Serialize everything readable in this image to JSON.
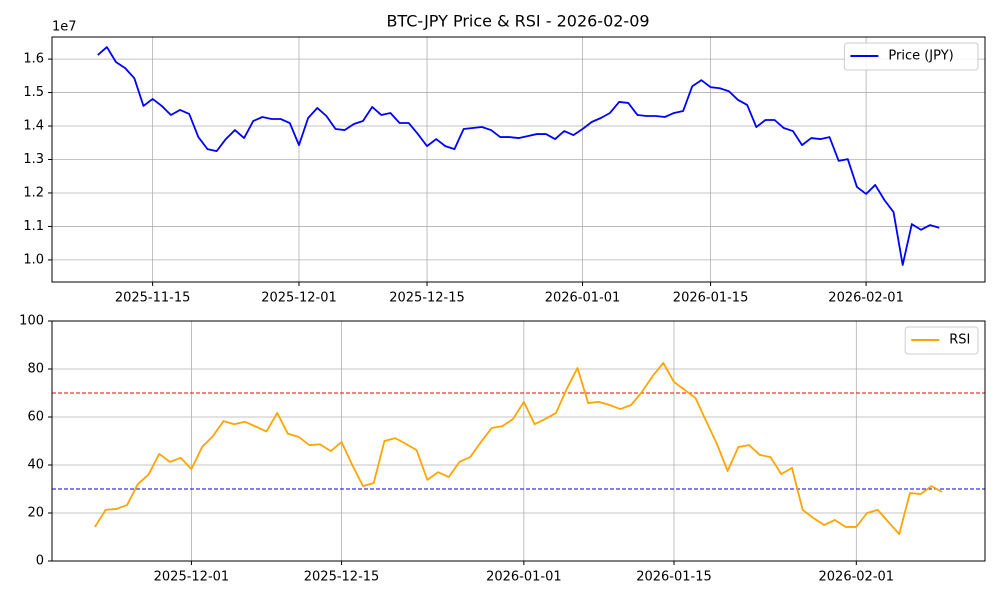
{
  "title": "BTC-JPY Price & RSI - 2026-02-09",
  "chart_data": [
    {
      "type": "line",
      "y_offset_label": "1e7",
      "x": [
        "2025-11-09",
        "2025-11-10",
        "2025-11-11",
        "2025-11-12",
        "2025-11-13",
        "2025-11-14",
        "2025-11-15",
        "2025-11-16",
        "2025-11-17",
        "2025-11-18",
        "2025-11-19",
        "2025-11-20",
        "2025-11-21",
        "2025-11-22",
        "2025-11-23",
        "2025-11-24",
        "2025-11-25",
        "2025-11-26",
        "2025-11-27",
        "2025-11-28",
        "2025-11-29",
        "2025-11-30",
        "2025-12-01",
        "2025-12-02",
        "2025-12-03",
        "2025-12-04",
        "2025-12-05",
        "2025-12-06",
        "2025-12-07",
        "2025-12-08",
        "2025-12-09",
        "2025-12-10",
        "2025-12-11",
        "2025-12-12",
        "2025-12-13",
        "2025-12-14",
        "2025-12-15",
        "2025-12-16",
        "2025-12-17",
        "2025-12-18",
        "2025-12-19",
        "2025-12-20",
        "2025-12-21",
        "2025-12-22",
        "2025-12-23",
        "2025-12-24",
        "2025-12-25",
        "2025-12-26",
        "2025-12-27",
        "2025-12-28",
        "2025-12-29",
        "2025-12-30",
        "2025-12-31",
        "2026-01-01",
        "2026-01-02",
        "2026-01-03",
        "2026-01-04",
        "2026-01-05",
        "2026-01-06",
        "2026-01-07",
        "2026-01-08",
        "2026-01-09",
        "2026-01-10",
        "2026-01-11",
        "2026-01-12",
        "2026-01-13",
        "2026-01-14",
        "2026-01-15",
        "2026-01-16",
        "2026-01-17",
        "2026-01-18",
        "2026-01-19",
        "2026-01-20",
        "2026-01-21",
        "2026-01-22",
        "2026-01-23",
        "2026-01-24",
        "2026-01-25",
        "2026-01-26",
        "2026-01-27",
        "2026-01-28",
        "2026-01-29",
        "2026-01-30",
        "2026-01-31",
        "2026-02-01",
        "2026-02-02",
        "2026-02-03",
        "2026-02-04",
        "2026-02-05",
        "2026-02-06",
        "2026-02-07",
        "2026-02-08",
        "2026-02-09"
      ],
      "series": [
        {
          "name": "Price (JPY)",
          "color": "#0000ff",
          "values": [
            16120000,
            16360000,
            15910000,
            15730000,
            15430000,
            14600000,
            14810000,
            14600000,
            14330000,
            14480000,
            14360000,
            13670000,
            13310000,
            13250000,
            13610000,
            13880000,
            13640000,
            14150000,
            14270000,
            14210000,
            14210000,
            14090000,
            13430000,
            14240000,
            14540000,
            14300000,
            13910000,
            13880000,
            14060000,
            14150000,
            14570000,
            14330000,
            14390000,
            14090000,
            14090000,
            13760000,
            13400000,
            13610000,
            13400000,
            13310000,
            13910000,
            13940000,
            13970000,
            13880000,
            13670000,
            13670000,
            13640000,
            13700000,
            13760000,
            13760000,
            13610000,
            13850000,
            13730000,
            13910000,
            14120000,
            14240000,
            14390000,
            14720000,
            14690000,
            14330000,
            14300000,
            14300000,
            14270000,
            14390000,
            14450000,
            15190000,
            15370000,
            15160000,
            15130000,
            15040000,
            14780000,
            14630000,
            13970000,
            14180000,
            14180000,
            13940000,
            13850000,
            13430000,
            13640000,
            13610000,
            13670000,
            12960000,
            13010000,
            12180000,
            11970000,
            12240000,
            11790000,
            11430000,
            9850000,
            11070000,
            10900000,
            11040000,
            10960000
          ]
        }
      ],
      "xlim": [
        "2025-11-04",
        "2026-02-14"
      ],
      "xticks": [
        "2025-11-15",
        "2025-12-01",
        "2025-12-15",
        "2026-01-01",
        "2026-01-15",
        "2026-02-01"
      ],
      "ylim": [
        9340000,
        16660000
      ],
      "yticks": [
        {
          "value": 10000000,
          "label": "1.0"
        },
        {
          "value": 11000000,
          "label": "1.1"
        },
        {
          "value": 12000000,
          "label": "1.2"
        },
        {
          "value": 13000000,
          "label": "1.3"
        },
        {
          "value": 14000000,
          "label": "1.4"
        },
        {
          "value": 15000000,
          "label": "1.5"
        },
        {
          "value": 16000000,
          "label": "1.6"
        }
      ],
      "grid": true,
      "legend": "upper-right"
    },
    {
      "type": "line",
      "x": [
        "2025-11-22",
        "2025-11-23",
        "2025-11-24",
        "2025-11-25",
        "2025-11-26",
        "2025-11-27",
        "2025-11-28",
        "2025-11-29",
        "2025-11-30",
        "2025-12-01",
        "2025-12-02",
        "2025-12-03",
        "2025-12-04",
        "2025-12-05",
        "2025-12-06",
        "2025-12-07",
        "2025-12-08",
        "2025-12-09",
        "2025-12-10",
        "2025-12-11",
        "2025-12-12",
        "2025-12-13",
        "2025-12-14",
        "2025-12-15",
        "2025-12-16",
        "2025-12-17",
        "2025-12-18",
        "2025-12-19",
        "2025-12-20",
        "2025-12-21",
        "2025-12-22",
        "2025-12-23",
        "2025-12-24",
        "2025-12-25",
        "2025-12-26",
        "2025-12-27",
        "2025-12-28",
        "2025-12-29",
        "2025-12-30",
        "2025-12-31",
        "2026-01-01",
        "2026-01-02",
        "2026-01-03",
        "2026-01-04",
        "2026-01-05",
        "2026-01-06",
        "2026-01-07",
        "2026-01-08",
        "2026-01-09",
        "2026-01-10",
        "2026-01-11",
        "2026-01-12",
        "2026-01-13",
        "2026-01-14",
        "2026-01-15",
        "2026-01-16",
        "2026-01-17",
        "2026-01-18",
        "2026-01-19",
        "2026-01-20",
        "2026-01-21",
        "2026-01-22",
        "2026-01-23",
        "2026-01-24",
        "2026-01-25",
        "2026-01-26",
        "2026-01-27",
        "2026-01-28",
        "2026-01-29",
        "2026-01-30",
        "2026-01-31",
        "2026-02-01",
        "2026-02-02",
        "2026-02-03",
        "2026-02-04",
        "2026-02-05",
        "2026-02-06",
        "2026-02-07",
        "2026-02-08",
        "2026-02-09"
      ],
      "series": [
        {
          "name": "RSI",
          "color": "#ffa500",
          "values": [
            14.2,
            21.3,
            21.7,
            23.3,
            32,
            36,
            44.6,
            41.3,
            43,
            38.3,
            47.5,
            52,
            58.3,
            57,
            58,
            56,
            54,
            61.7,
            53,
            51.7,
            48.3,
            48.6,
            45.8,
            49.6,
            40,
            31.2,
            32.5,
            50,
            51.2,
            48.8,
            46.2,
            33.8,
            37,
            35,
            41.3,
            43.3,
            49.6,
            55.4,
            56.2,
            59.2,
            66.3,
            57,
            59.2,
            61.7,
            71.7,
            80.4,
            65.8,
            66.3,
            65,
            63.3,
            65,
            70.4,
            77,
            82.5,
            74.6,
            71.3,
            67.9,
            58.3,
            48.8,
            37.5,
            47.5,
            48.3,
            44.2,
            43.3,
            36.2,
            38.8,
            21.3,
            17.9,
            15,
            17.1,
            14.2,
            14.2,
            20,
            21.3,
            16.2,
            11.2,
            28.3,
            27.9,
            31.2,
            28.8
          ]
        }
      ],
      "hlines": [
        {
          "value": 70,
          "color": "#ff0000"
        },
        {
          "value": 30,
          "color": "#0000ff"
        }
      ],
      "xlim": [
        "2025-11-18",
        "2026-02-13"
      ],
      "xticks": [
        "2025-12-01",
        "2025-12-15",
        "2026-01-01",
        "2026-01-15",
        "2026-02-01"
      ],
      "ylim": [
        0,
        100
      ],
      "yticks": [
        0,
        20,
        40,
        60,
        80,
        100
      ],
      "grid": true,
      "legend": "upper-right"
    }
  ]
}
